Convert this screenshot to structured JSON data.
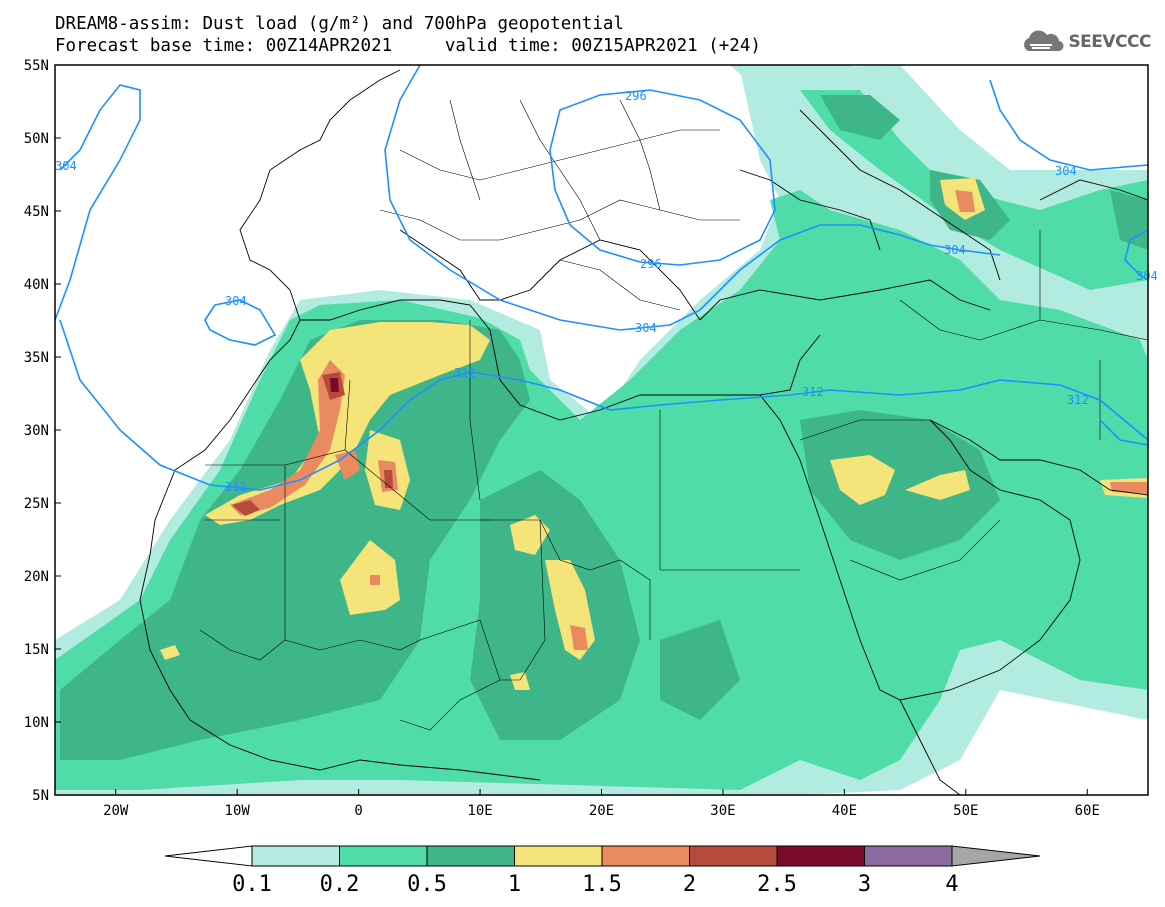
{
  "title": {
    "line1": "DREAM8-assim: Dust load (g/m²) and 700hPa geopotential",
    "line2": "Forecast base time: 00Z14APR2021     valid time: 00Z15APR2021 (+24)"
  },
  "logo": {
    "text": "SEEVCCC",
    "icon": "cloud-logo-icon"
  },
  "map": {
    "lat_labels": [
      "55N",
      "50N",
      "45N",
      "40N",
      "35N",
      "30N",
      "25N",
      "20N",
      "15N",
      "10N",
      "5N"
    ],
    "lon_labels": [
      "20W",
      "10W",
      "0",
      "10E",
      "20E",
      "30E",
      "40E",
      "50E",
      "60E"
    ],
    "lat_range": [
      5,
      55
    ],
    "lon_range": [
      -25,
      65
    ],
    "contour_color": "#1e90ff",
    "contour_labels": [
      "296",
      "304",
      "304",
      "296",
      "304",
      "312",
      "312",
      "312",
      "312",
      "304",
      "304",
      "304"
    ]
  },
  "colorbar": {
    "labels": [
      "0.1",
      "0.2",
      "0.5",
      "1",
      "1.5",
      "2",
      "2.5",
      "3",
      "4"
    ],
    "colors": [
      "#b2ebe0",
      "#4fdca8",
      "#3eb689",
      "#f5e47a",
      "#e98a60",
      "#b64b3b",
      "#7a0a2b",
      "#8a6aa0",
      "#a6a6a6"
    ],
    "under_color": "#ffffff"
  }
}
